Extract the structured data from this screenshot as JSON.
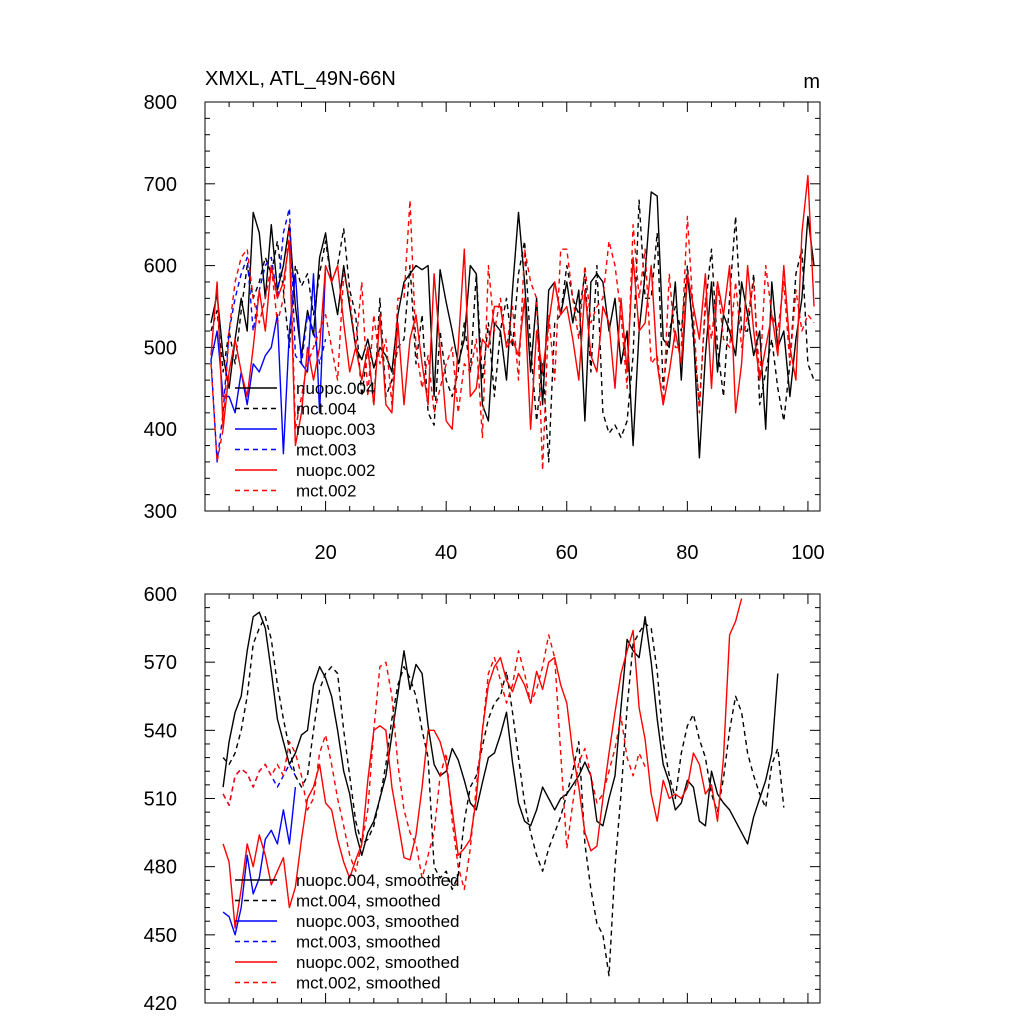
{
  "chart_data": [
    {
      "type": "line",
      "title": "XMXL, ATL_49N-66N",
      "units": "m",
      "xlim": [
        0,
        102
      ],
      "ylim": [
        300,
        800
      ],
      "xticks": [
        20,
        40,
        60,
        80,
        100
      ],
      "yticks": [
        300,
        400,
        500,
        600,
        700,
        800
      ],
      "series": [
        {
          "name": "nuopc.004",
          "color": "#000000",
          "dash": "solid",
          "x_start": 1,
          "values": [
            530,
            565,
            490,
            450,
            510,
            560,
            520,
            665,
            640,
            560,
            650,
            570,
            600,
            650,
            550,
            490,
            545,
            515,
            610,
            640,
            580,
            540,
            600,
            550,
            500,
            485,
            510,
            475,
            500,
            490,
            470,
            540,
            580,
            590,
            600,
            595,
            600,
            440,
            595,
            555,
            520,
            480,
            510,
            600,
            590,
            430,
            410,
            530,
            520,
            460,
            570,
            665,
            580,
            470,
            560,
            430,
            570,
            580,
            540,
            580,
            530,
            570,
            410,
            580,
            590,
            580,
            520,
            560,
            480,
            520,
            380,
            520,
            590,
            690,
            685,
            510,
            500,
            580,
            460,
            590,
            520,
            365,
            490,
            580,
            470,
            540,
            520,
            490,
            580,
            540,
            490,
            520,
            400,
            580,
            500,
            520,
            440,
            510,
            560,
            660,
            600
          ]
        },
        {
          "name": "mct.004",
          "color": "#000000",
          "dash": "dash",
          "x_start": 1,
          "values": [
            520,
            545,
            470,
            520,
            480,
            545,
            600,
            560,
            580,
            610,
            590,
            630,
            570,
            500,
            600,
            575,
            590,
            540,
            590,
            630,
            580,
            600,
            645,
            570,
            540,
            440,
            500,
            430,
            560,
            440,
            460,
            500,
            510,
            600,
            480,
            540,
            420,
            405,
            520,
            460,
            440,
            470,
            530,
            470,
            590,
            460,
            530,
            440,
            520,
            560,
            500,
            590,
            630,
            500,
            410,
            480,
            360,
            530,
            540,
            600,
            560,
            540,
            590,
            470,
            600,
            420,
            395,
            405,
            390,
            410,
            490,
            680,
            560,
            560,
            640,
            450,
            520,
            550,
            520,
            600,
            510,
            430,
            550,
            620,
            500,
            440,
            560,
            660,
            520,
            520,
            590,
            430,
            470,
            510,
            450,
            410,
            480,
            590,
            620,
            480,
            460
          ]
        },
        {
          "name": "nuopc.003",
          "color": "#0000ff",
          "dash": "solid",
          "x_start": 1,
          "values": [
            485,
            520,
            440,
            440,
            420,
            470,
            430,
            480,
            470,
            490,
            500,
            540,
            370,
            520,
            590,
            480,
            470,
            590,
            420,
            600
          ]
        },
        {
          "name": "mct.003",
          "color": "#0000ff",
          "dash": "dash",
          "x_start": 1,
          "values": [
            485,
            360,
            420,
            520,
            560,
            590,
            610,
            520,
            570,
            600,
            610,
            560,
            640,
            670,
            490,
            480,
            540,
            520,
            480,
            510
          ]
        },
        {
          "name": "nuopc.002",
          "color": "#ff0000",
          "dash": "solid",
          "x_start": 1,
          "values": [
            490,
            580,
            400,
            470,
            510,
            470,
            440,
            500,
            570,
            520,
            600,
            560,
            580,
            630,
            380,
            420,
            500,
            460,
            500,
            600,
            580,
            600,
            530,
            470,
            500,
            460,
            500,
            430,
            540,
            430,
            420,
            530,
            430,
            510,
            540,
            480,
            430,
            590,
            500,
            410,
            400,
            500,
            620,
            440,
            450,
            510,
            500,
            550,
            550,
            500,
            510,
            490,
            560,
            400,
            520,
            470,
            530,
            580,
            540,
            550,
            510,
            460,
            570,
            490,
            470,
            550,
            530,
            450,
            560,
            470,
            610,
            520,
            530,
            600,
            480,
            430,
            470,
            520,
            480,
            590,
            550,
            510,
            590,
            450,
            580,
            540,
            600,
            420,
            480,
            600,
            520,
            460,
            500,
            540,
            490,
            600,
            500,
            460,
            640,
            710,
            550
          ]
        },
        {
          "name": "mct.002",
          "color": "#ff0000",
          "dash": "dash",
          "x_start": 1,
          "values": [
            480,
            360,
            400,
            520,
            580,
            610,
            620,
            560,
            530,
            560,
            600,
            530,
            560,
            650,
            400,
            440,
            480,
            500,
            520,
            540,
            500,
            460,
            590,
            560,
            500,
            580,
            440,
            540,
            480,
            510,
            430,
            560,
            560,
            680,
            500,
            450,
            490,
            420,
            450,
            480,
            500,
            420,
            480,
            470,
            510,
            390,
            600,
            520,
            560,
            500,
            550,
            460,
            620,
            580,
            560,
            350,
            540,
            460,
            620,
            620,
            560,
            510,
            600,
            530,
            550,
            560,
            630,
            600,
            540,
            450,
            650,
            560,
            620,
            480,
            490,
            430,
            590,
            500,
            500,
            660,
            540,
            420,
            560,
            510,
            580,
            510,
            500,
            580,
            500,
            540,
            580,
            460,
            600,
            540,
            520,
            580,
            480,
            570,
            520,
            540,
            530
          ]
        }
      ]
    },
    {
      "type": "line",
      "title": "",
      "xlim": [
        0,
        102
      ],
      "ylim": [
        420,
        600
      ],
      "xticks": [
        20,
        40,
        60,
        80,
        100
      ],
      "yticks": [
        420,
        450,
        480,
        510,
        540,
        570,
        600
      ],
      "series": [
        {
          "name": "nuopc.004, smoothed",
          "color": "#000000",
          "dash": "solid",
          "x_start": 3,
          "values": [
            515,
            535,
            548,
            555,
            575,
            590,
            592,
            585,
            566,
            545,
            535,
            525,
            530,
            538,
            540,
            560,
            568,
            563,
            555,
            540,
            522,
            512,
            495,
            485,
            495,
            500,
            510,
            520,
            538,
            556,
            575,
            558,
            569,
            565,
            542,
            525,
            520,
            522,
            532,
            527,
            518,
            508,
            505,
            517,
            528,
            530,
            538,
            548,
            526,
            508,
            500,
            498,
            505,
            515,
            510,
            505,
            510,
            512,
            516,
            520,
            526,
            520,
            500,
            498,
            510,
            520,
            550,
            580,
            575,
            572,
            590,
            570,
            545,
            525,
            517,
            505,
            508,
            518,
            515,
            500,
            498,
            522,
            512,
            508,
            505,
            500,
            495,
            490,
            502,
            510,
            518,
            530,
            565
          ]
        },
        {
          "name": "mct.004, smoothed",
          "color": "#000000",
          "dash": "dash",
          "x_start": 3,
          "values": [
            528,
            525,
            530,
            540,
            555,
            578,
            585,
            590,
            580,
            560,
            545,
            532,
            520,
            515,
            520,
            540,
            558,
            565,
            568,
            565,
            540,
            520,
            500,
            490,
            492,
            498,
            510,
            525,
            545,
            560,
            568,
            563,
            555,
            540,
            528,
            480,
            475,
            478,
            470,
            476,
            500,
            515,
            520,
            533,
            545,
            552,
            555,
            566,
            548,
            528,
            508,
            495,
            485,
            478,
            488,
            495,
            502,
            512,
            522,
            535,
            490,
            470,
            455,
            450,
            432,
            480,
            512,
            550,
            578,
            583,
            587,
            585,
            566,
            535,
            520,
            510,
            530,
            542,
            547,
            536,
            528,
            512,
            504,
            519,
            540,
            555,
            548,
            530,
            520,
            512,
            506,
            525,
            532,
            506
          ]
        },
        {
          "name": "nuopc.003, smoothed",
          "color": "#0000ff",
          "dash": "solid",
          "x_start": 3,
          "values": [
            460,
            458,
            450,
            462,
            485,
            468,
            475,
            492,
            496,
            490,
            505,
            490,
            515
          ]
        },
        {
          "name": "mct.003, smoothed",
          "color": "#0000ff",
          "dash": "dash",
          "x_start": 3,
          "values": [
            512,
            507,
            520,
            523,
            521,
            515,
            522,
            525,
            520,
            515,
            520,
            525,
            520
          ]
        },
        {
          "name": "nuopc.002, smoothed",
          "color": "#ff0000",
          "dash": "solid",
          "x_start": 3,
          "values": [
            490,
            482,
            453,
            470,
            490,
            480,
            494,
            485,
            472,
            478,
            484,
            462,
            471,
            492,
            510,
            515,
            525,
            508,
            505,
            492,
            482,
            475,
            483,
            490,
            518,
            540,
            542,
            540,
            515,
            500,
            484,
            483,
            494,
            515,
            540,
            540,
            535,
            525,
            505,
            485,
            488,
            492,
            510,
            540,
            560,
            568,
            572,
            562,
            557,
            565,
            560,
            552,
            566,
            558,
            570,
            572,
            560,
            552,
            530,
            515,
            495,
            487,
            489,
            510,
            530,
            548,
            565,
            575,
            584,
            550,
            536,
            512,
            500,
            518,
            510,
            512,
            510,
            515,
            530,
            525,
            512,
            516,
            500,
            528,
            582,
            588,
            598
          ]
        },
        {
          "name": "mct.002, smoothed",
          "color": "#ff0000",
          "dash": "dash",
          "x_start": 3,
          "values": [
            512,
            507,
            520,
            523,
            521,
            515,
            522,
            525,
            520,
            525,
            520,
            535,
            530,
            520,
            505,
            510,
            530,
            538,
            525,
            510,
            498,
            485,
            478,
            490,
            505,
            540,
            568,
            570,
            555,
            525,
            505,
            495,
            490,
            475,
            485,
            495,
            520,
            530,
            500,
            480,
            470,
            488,
            515,
            540,
            565,
            572,
            562,
            552,
            560,
            575,
            565,
            552,
            558,
            568,
            582,
            572,
            530,
            488,
            508,
            526,
            532,
            520,
            508,
            512,
            522,
            532,
            546,
            528,
            520,
            530,
            524
          ]
        }
      ]
    }
  ]
}
